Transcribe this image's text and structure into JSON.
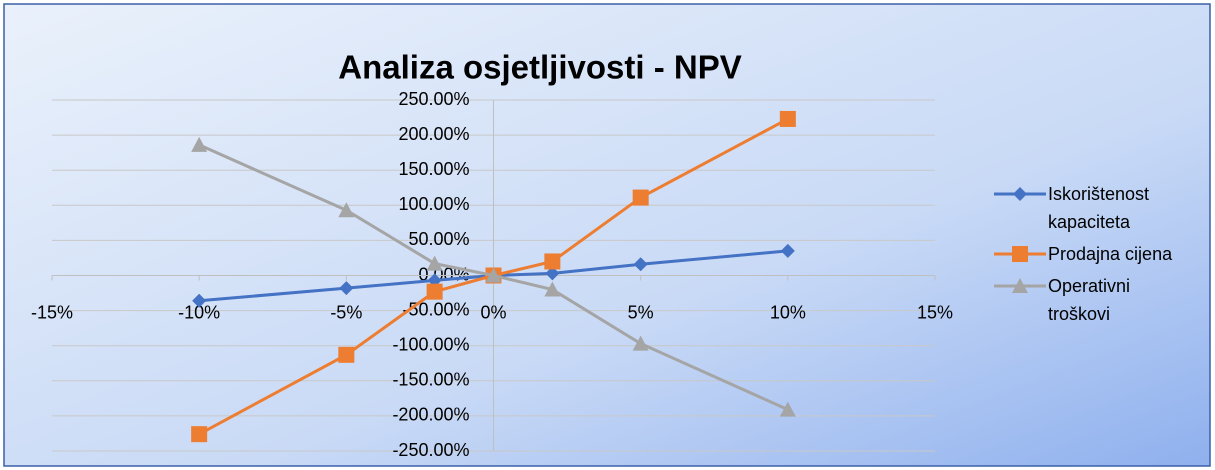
{
  "chart_data": {
    "type": "scatter-line",
    "title": "Analiza osjetljivosti - NPV",
    "x": [
      -10,
      -5,
      -2,
      0,
      2,
      5,
      10
    ],
    "series": [
      {
        "name": "Iskorištenost kapaciteta",
        "color": "#4472c4",
        "marker": "diamond",
        "values": [
          -36,
          -18,
          -7,
          0,
          3,
          16,
          35
        ]
      },
      {
        "name": "Prodajna cijena",
        "color": "#ed7d31",
        "marker": "square",
        "values": [
          -226,
          -113,
          -23,
          0,
          20,
          111,
          223
        ]
      },
      {
        "name": "Operativni troškovi",
        "color": "#a5a5a5",
        "marker": "triangle",
        "values": [
          186,
          93,
          17,
          0,
          -20,
          -97,
          -191
        ]
      }
    ],
    "xlim": [
      -15,
      15
    ],
    "xticks": [
      {
        "value": -15,
        "label": "-15%"
      },
      {
        "value": -10,
        "label": "-10%"
      },
      {
        "value": -5,
        "label": "-5%"
      },
      {
        "value": 0,
        "label": "0%"
      },
      {
        "value": 5,
        "label": "5%"
      },
      {
        "value": 10,
        "label": "10%"
      },
      {
        "value": 15,
        "label": "15%"
      }
    ],
    "ylim": [
      -250,
      250
    ],
    "yticks": [
      {
        "value": -250,
        "label": "-250.00%"
      },
      {
        "value": -200,
        "label": "-200.00%"
      },
      {
        "value": -150,
        "label": "-150.00%"
      },
      {
        "value": -100,
        "label": "-100.00%"
      },
      {
        "value": -50,
        "label": "-50.00%"
      },
      {
        "value": 0,
        "label": "0.00%"
      },
      {
        "value": 50,
        "label": "50.00%"
      },
      {
        "value": 100,
        "label": "100.00%"
      },
      {
        "value": 150,
        "label": "150.00%"
      },
      {
        "value": 200,
        "label": "200.00%"
      },
      {
        "value": 250,
        "label": "250.00%"
      }
    ],
    "grid": true,
    "legend": "right"
  }
}
